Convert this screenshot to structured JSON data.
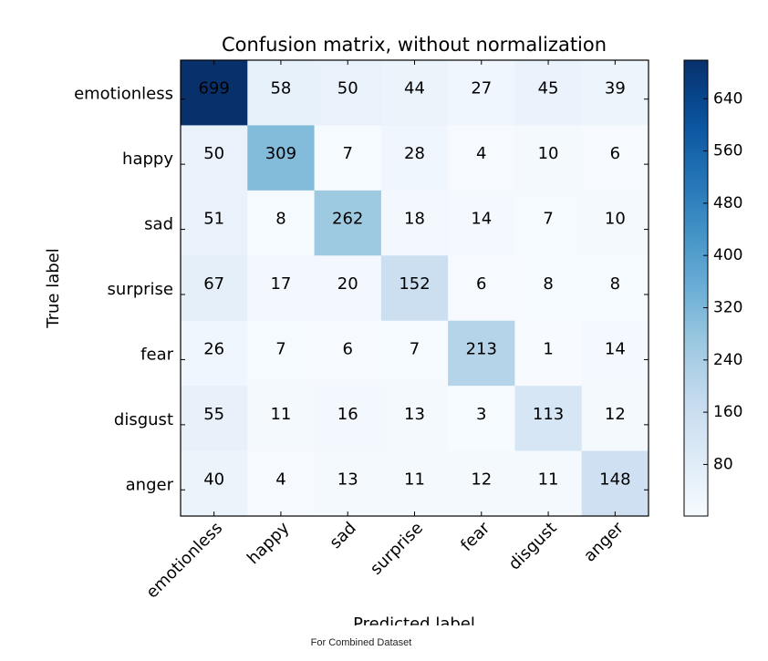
{
  "chart_data": {
    "type": "heatmap",
    "title": "Confusion matrix, without normalization",
    "xlabel": "Predicted label",
    "ylabel": "True label",
    "row_labels": [
      "emotionless",
      "happy",
      "sad",
      "surprise",
      "fear",
      "disgust",
      "anger"
    ],
    "col_labels": [
      "emotionless",
      "happy",
      "sad",
      "surprise",
      "fear",
      "disgust",
      "anger"
    ],
    "matrix": [
      [
        699,
        58,
        50,
        44,
        27,
        45,
        39
      ],
      [
        50,
        309,
        7,
        28,
        4,
        10,
        6
      ],
      [
        51,
        8,
        262,
        18,
        14,
        7,
        10
      ],
      [
        67,
        17,
        20,
        152,
        6,
        8,
        8
      ],
      [
        26,
        7,
        6,
        7,
        213,
        1,
        14
      ],
      [
        55,
        11,
        16,
        13,
        3,
        113,
        12
      ],
      [
        40,
        4,
        13,
        11,
        12,
        11,
        148
      ]
    ],
    "colormap": "Blues",
    "colorbar": {
      "ticks": [
        80,
        160,
        240,
        320,
        400,
        480,
        560,
        640
      ],
      "range": [
        1,
        699
      ]
    },
    "grid": false
  },
  "caption": "For Combined Dataset"
}
